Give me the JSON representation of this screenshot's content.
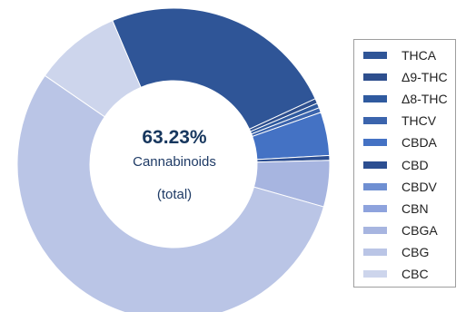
{
  "center": {
    "value": "63.23%",
    "caption": "Cannabinoids",
    "sub": "(total)"
  },
  "chart_data": {
    "type": "pie",
    "variant": "donut",
    "categories": [
      "THCA",
      "Δ9-THC",
      "Δ8-THC",
      "THCV",
      "CBDA",
      "CBD",
      "CBDV",
      "CBN",
      "CBGA",
      "CBG",
      "CBC"
    ],
    "values": [
      24.5,
      0.5,
      0.5,
      0.5,
      4.5,
      0.5,
      0.0,
      0.0,
      4.8,
      55.2,
      9.0
    ],
    "colors": [
      "#2f5597",
      "#2e4f8e",
      "#2f5a9f",
      "#3b64ad",
      "#4472c4",
      "#2c4e91",
      "#6f8fd2",
      "#8ea3dd",
      "#a7b5e0",
      "#bac5e6",
      "#cdd5ec"
    ],
    "legend_position": "right",
    "start_angle_deg": -23
  }
}
